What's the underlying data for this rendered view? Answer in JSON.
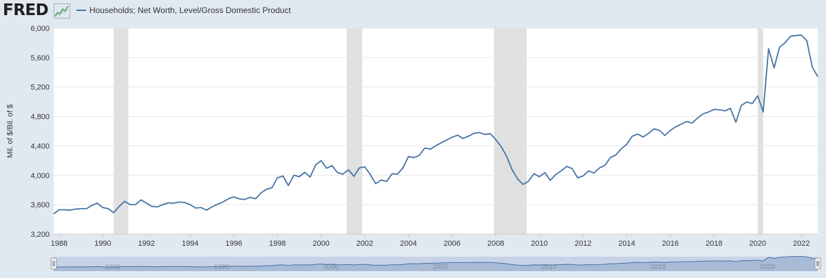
{
  "header": {
    "logo": "FRED",
    "legend_label": "Households; Net Worth, Level/Gross Domestic Product"
  },
  "colors": {
    "series": "#4572a7",
    "recession": "#e0e0e0",
    "plot_bg": "#ffffff",
    "page_bg": "#e1e9f0",
    "navigator_bg": "#c8d2e6"
  },
  "chart_data": {
    "type": "line",
    "title": "",
    "xlabel": "",
    "ylabel": "Mil. of $/Bil. of $",
    "xlim": [
      1987.75,
      2022.75
    ],
    "ylim": [
      3200,
      6000
    ],
    "y_ticks": [
      3200,
      3600,
      4000,
      4400,
      4800,
      5200,
      5600,
      6000
    ],
    "y_tick_labels": [
      "3,200",
      "3,600",
      "4,000",
      "4,400",
      "4,800",
      "5,200",
      "5,600",
      "6,000"
    ],
    "x_ticks": [
      1988,
      1990,
      1992,
      1994,
      1996,
      1998,
      2000,
      2002,
      2004,
      2006,
      2008,
      2010,
      2012,
      2014,
      2016,
      2018,
      2020,
      2022
    ],
    "x_tick_labels": [
      "1988",
      "1990",
      "1992",
      "1994",
      "1996",
      "1998",
      "2000",
      "2002",
      "2004",
      "2006",
      "2008",
      "2010",
      "2012",
      "2014",
      "2016",
      "2018",
      "2020",
      "2022"
    ],
    "grid": "horizontal",
    "legend": "top-left",
    "recessions": [
      [
        1990.5,
        1991.17
      ],
      [
        2001.17,
        2001.88
      ],
      [
        2007.92,
        2009.42
      ],
      [
        2020.0,
        2020.25
      ]
    ],
    "navigator": {
      "x_tick_labels": [
        "1990",
        "1995",
        "2000",
        "2005",
        "2010",
        "2015",
        "2020"
      ],
      "x_ticks": [
        1990,
        1995,
        2000,
        2005,
        2010,
        2015,
        2020
      ]
    },
    "series": [
      {
        "name": "Households; Net Worth, Level/Gross Domestic Product",
        "x": [
          1987.75,
          1988.0,
          1988.25,
          1988.5,
          1988.75,
          1989.0,
          1989.25,
          1989.5,
          1989.75,
          1990.0,
          1990.25,
          1990.5,
          1990.75,
          1991.0,
          1991.25,
          1991.5,
          1991.75,
          1992.0,
          1992.25,
          1992.5,
          1992.75,
          1993.0,
          1993.25,
          1993.5,
          1993.75,
          1994.0,
          1994.25,
          1994.5,
          1994.75,
          1995.0,
          1995.25,
          1995.5,
          1995.75,
          1996.0,
          1996.25,
          1996.5,
          1996.75,
          1997.0,
          1997.25,
          1997.5,
          1997.75,
          1998.0,
          1998.25,
          1998.5,
          1998.75,
          1999.0,
          1999.25,
          1999.5,
          1999.75,
          2000.0,
          2000.25,
          2000.5,
          2000.75,
          2001.0,
          2001.25,
          2001.5,
          2001.75,
          2002.0,
          2002.25,
          2002.5,
          2002.75,
          2003.0,
          2003.25,
          2003.5,
          2003.75,
          2004.0,
          2004.25,
          2004.5,
          2004.75,
          2005.0,
          2005.25,
          2005.5,
          2005.75,
          2006.0,
          2006.25,
          2006.5,
          2006.75,
          2007.0,
          2007.25,
          2007.5,
          2007.75,
          2008.0,
          2008.25,
          2008.5,
          2008.75,
          2009.0,
          2009.25,
          2009.5,
          2009.75,
          2010.0,
          2010.25,
          2010.5,
          2010.75,
          2011.0,
          2011.25,
          2011.5,
          2011.75,
          2012.0,
          2012.25,
          2012.5,
          2012.75,
          2013.0,
          2013.25,
          2013.5,
          2013.75,
          2014.0,
          2014.25,
          2014.5,
          2014.75,
          2015.0,
          2015.25,
          2015.5,
          2015.75,
          2016.0,
          2016.25,
          2016.5,
          2016.75,
          2017.0,
          2017.25,
          2017.5,
          2017.75,
          2018.0,
          2018.25,
          2018.5,
          2018.75,
          2019.0,
          2019.25,
          2019.5,
          2019.75,
          2020.0,
          2020.25,
          2020.5,
          2020.75,
          2021.0,
          2021.25,
          2021.5,
          2021.75,
          2022.0,
          2022.25,
          2022.5,
          2022.75
        ],
        "values": [
          3475,
          3530,
          3530,
          3525,
          3540,
          3545,
          3545,
          3590,
          3620,
          3560,
          3545,
          3490,
          3575,
          3645,
          3600,
          3600,
          3665,
          3620,
          3575,
          3570,
          3600,
          3625,
          3620,
          3635,
          3630,
          3600,
          3555,
          3560,
          3525,
          3570,
          3605,
          3635,
          3680,
          3705,
          3680,
          3670,
          3700,
          3680,
          3760,
          3810,
          3830,
          3965,
          3990,
          3860,
          4000,
          3980,
          4040,
          3975,
          4140,
          4200,
          4095,
          4130,
          4035,
          4015,
          4075,
          3985,
          4100,
          4115,
          4010,
          3885,
          3935,
          3915,
          4020,
          4015,
          4100,
          4255,
          4240,
          4270,
          4370,
          4355,
          4400,
          4440,
          4480,
          4515,
          4545,
          4500,
          4530,
          4570,
          4580,
          4555,
          4565,
          4485,
          4390,
          4255,
          4075,
          3950,
          3875,
          3920,
          4020,
          3980,
          4035,
          3930,
          4010,
          4060,
          4120,
          4090,
          3965,
          3990,
          4060,
          4030,
          4100,
          4135,
          4240,
          4275,
          4360,
          4420,
          4530,
          4560,
          4520,
          4570,
          4630,
          4610,
          4540,
          4610,
          4660,
          4695,
          4730,
          4710,
          4780,
          4835,
          4860,
          4895,
          4890,
          4875,
          4910,
          4720,
          4950,
          4995,
          4975,
          5080,
          4860,
          5720,
          5460,
          5740,
          5800,
          5890,
          5900,
          5905,
          5830,
          5470,
          5340
        ]
      }
    ]
  }
}
